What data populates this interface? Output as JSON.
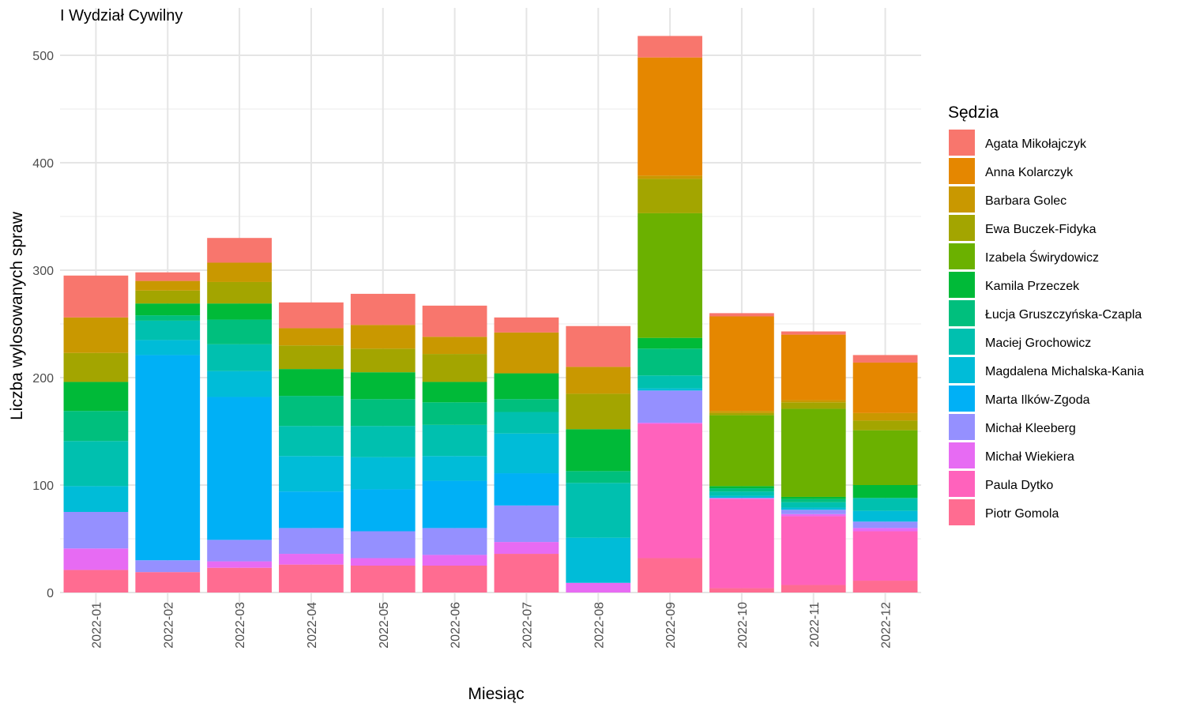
{
  "chart_data": {
    "type": "bar",
    "stacked": true,
    "title": "I Wydział Cywilny",
    "xlabel": "Miesiąc",
    "ylabel": "Liczba wylosowanych spraw",
    "ylim": [
      0,
      530
    ],
    "yticks": [
      0,
      100,
      200,
      300,
      400,
      500
    ],
    "grid": true,
    "legend_title": "Sędzia",
    "legend_position": "right",
    "categories": [
      "2022-01",
      "2022-02",
      "2022-03",
      "2022-04",
      "2022-05",
      "2022-06",
      "2022-07",
      "2022-08",
      "2022-09",
      "2022-10",
      "2022-11",
      "2022-12"
    ],
    "series": [
      {
        "name": "Agata Mikołajczyk",
        "color": "#F8766D",
        "values": [
          39,
          8,
          23,
          24,
          29,
          29,
          14,
          38,
          20,
          3,
          3,
          7
        ]
      },
      {
        "name": "Anna Kolarczyk",
        "color": "#E58700",
        "values": [
          0,
          0,
          0,
          0,
          0,
          0,
          0,
          0,
          110,
          88,
          61,
          47
        ]
      },
      {
        "name": "Barbara Golec",
        "color": "#C99800",
        "values": [
          33,
          9,
          18,
          16,
          22,
          16,
          38,
          25,
          3,
          2,
          2,
          7
        ]
      },
      {
        "name": "Ewa Buczek-Fidyka",
        "color": "#A3A500",
        "values": [
          27,
          12,
          20,
          22,
          22,
          26,
          0,
          33,
          32,
          2,
          6,
          9
        ]
      },
      {
        "name": "Izabela Świrydowicz",
        "color": "#6BB100",
        "values": [
          0,
          0,
          0,
          0,
          0,
          0,
          0,
          0,
          116,
          66,
          82,
          51
        ]
      },
      {
        "name": "Kamila Przeczek",
        "color": "#00BA38",
        "values": [
          27,
          11,
          15,
          25,
          25,
          19,
          24,
          39,
          10,
          2,
          2,
          12
        ]
      },
      {
        "name": "Łucja Gruszczyńska-Czapla",
        "color": "#00BF7D",
        "values": [
          28,
          5,
          23,
          28,
          25,
          21,
          12,
          11,
          25,
          3,
          3,
          0
        ]
      },
      {
        "name": "Maciej Grochowicz",
        "color": "#00C0AF",
        "values": [
          42,
          18,
          25,
          28,
          29,
          29,
          20,
          51,
          12,
          4,
          5,
          12
        ]
      },
      {
        "name": "Magdalena Michalska-Kania",
        "color": "#00BCD8",
        "values": [
          24,
          14,
          24,
          33,
          30,
          23,
          37,
          42,
          2,
          2,
          2,
          10
        ]
      },
      {
        "name": "Marta Ilków-Zgoda",
        "color": "#00B0F6",
        "values": [
          0,
          191,
          133,
          34,
          39,
          44,
          30,
          0,
          0,
          0,
          0,
          0
        ]
      },
      {
        "name": "Michał Kleeberg",
        "color": "#9590FF",
        "values": [
          34,
          11,
          20,
          24,
          25,
          25,
          34,
          0,
          30,
          0,
          4,
          6
        ]
      },
      {
        "name": "Michał Wiekiera",
        "color": "#E76BF3",
        "values": [
          20,
          0,
          6,
          10,
          7,
          10,
          11,
          9,
          1,
          1,
          2,
          3
        ]
      },
      {
        "name": "Paula Dytko",
        "color": "#FF62BC",
        "values": [
          0,
          0,
          0,
          0,
          0,
          0,
          0,
          0,
          125,
          83,
          64,
          46
        ]
      },
      {
        "name": "Piotr Gomola",
        "color": "#FF6C91",
        "values": [
          21,
          19,
          23,
          26,
          25,
          25,
          36,
          0,
          32,
          4,
          7,
          11
        ]
      }
    ]
  }
}
